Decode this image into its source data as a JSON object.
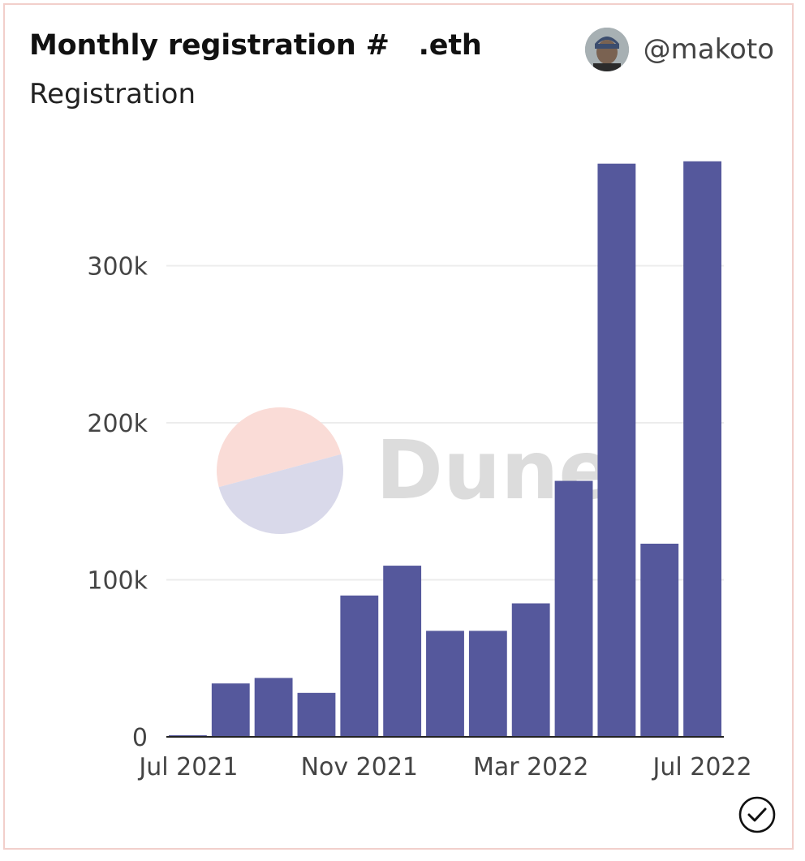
{
  "card": {
    "title": "Monthly registration #   .eth",
    "subtitle": "Registration",
    "author": "@makoto",
    "watermark": "Dune"
  },
  "colors": {
    "bar": "#55589c",
    "grid": "#ececec",
    "axis": "#222222",
    "tick_text": "#444444",
    "watermark_text": "#dcdcdc",
    "watermark_top": "#fadcd7",
    "watermark_bottom": "#d9d9ea"
  },
  "chart_data": {
    "type": "bar",
    "categories": [
      "Jul 2021",
      "Aug 2021",
      "Sep 2021",
      "Oct 2021",
      "Nov 2021",
      "Dec 2021",
      "Jan 2022",
      "Feb 2022",
      "Mar 2022",
      "Apr 2022",
      "May 2022",
      "Jun 2022",
      "Jul 2022"
    ],
    "values": [
      1000,
      34000,
      37500,
      28000,
      90000,
      109000,
      67500,
      67500,
      85000,
      163000,
      365000,
      123000,
      366500
    ],
    "x_tick_labels": [
      "Jul 2021",
      "Nov 2021",
      "Mar 2022",
      "Jul 2022"
    ],
    "y_ticks": [
      0,
      100000,
      200000,
      300000
    ],
    "y_tick_labels": [
      "0",
      "100k",
      "200k",
      "300k"
    ],
    "ylim": [
      0,
      370000
    ],
    "grid": true,
    "legend": "none"
  }
}
